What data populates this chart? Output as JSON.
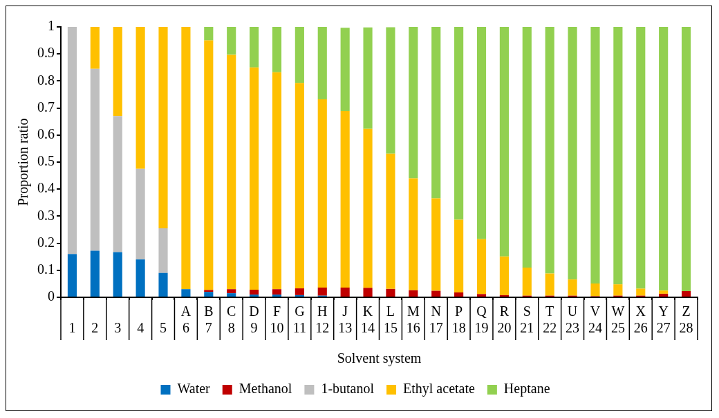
{
  "chart_data": {
    "type": "bar",
    "stacked": true,
    "xlabel": "Solvent system",
    "ylabel": "Proportion ratio",
    "categories": [
      "1",
      "2",
      "3",
      "4",
      "5",
      "A\n6",
      "B\n7",
      "C\n8",
      "D\n9",
      "F\n10",
      "G\n11",
      "H\n12",
      "J\n13",
      "K\n14",
      "L\n15",
      "M\n16",
      "N\n17",
      "P\n18",
      "Q\n19",
      "R\n20",
      "S\n21",
      "T\n22",
      "U\n23",
      "V\n24",
      "W\n25",
      "X\n26",
      "Y\n27",
      "Z\n28"
    ],
    "series": [
      {
        "name": "Water",
        "color": "#0070c0",
        "values": [
          0.16,
          0.172,
          0.167,
          0.14,
          0.09,
          0.03,
          0.02,
          0.015,
          0.01,
          0.01,
          0.008,
          0.006,
          null,
          null,
          null,
          0,
          0,
          0,
          0,
          0,
          0,
          0,
          0,
          0,
          0,
          0,
          0,
          0
        ]
      },
      {
        "name": "Methanol",
        "color": "#c00000",
        "values": [
          0,
          0,
          0,
          0,
          0,
          0,
          0.007,
          0.015,
          0.018,
          0.02,
          0.025,
          0.03,
          0.036,
          0.035,
          0.031,
          0.026,
          0.024,
          0.018,
          0.012,
          0.008,
          0.006,
          0.006,
          0.006,
          0.004,
          0.006,
          0.006,
          0.013,
          0.023
        ]
      },
      {
        "name": "1-butanol",
        "color": "#bfbfbf",
        "values": [
          0.84,
          0.673,
          0.503,
          0.335,
          0.165,
          0,
          0,
          0,
          0,
          0,
          0,
          0,
          0,
          0,
          0,
          0,
          0,
          0,
          0,
          0,
          0,
          0,
          0,
          0,
          0,
          0,
          0,
          0
        ]
      },
      {
        "name": "Ethyl acetate",
        "color": "#ffc000",
        "values": [
          0,
          0.155,
          0.33,
          0.525,
          0.745,
          0.97,
          0.923,
          0.867,
          0.822,
          0.802,
          0.76,
          0.696,
          0.653,
          0.588,
          0.5,
          0.414,
          0.342,
          0.269,
          0.203,
          0.143,
          0.104,
          0.082,
          0.06,
          0.047,
          0.042,
          0.026,
          0.012,
          0
        ]
      },
      {
        "name": "Heptane",
        "color": "#92d050",
        "values": [
          0,
          0,
          0,
          0,
          0,
          0,
          0.05,
          0.103,
          0.15,
          0.168,
          0.207,
          0.268,
          0.308,
          0.375,
          0.468,
          0.56,
          0.634,
          0.713,
          0.785,
          0.849,
          0.89,
          0.912,
          0.934,
          0.949,
          0.952,
          0.968,
          0.975,
          0.977
        ]
      }
    ],
    "ylim": [
      0,
      1
    ],
    "yticks": [
      0,
      0.1,
      0.2,
      0.3,
      0.4,
      0.5,
      0.6,
      0.7,
      0.8,
      0.9,
      1
    ],
    "grid": false,
    "legend": "bottom"
  }
}
